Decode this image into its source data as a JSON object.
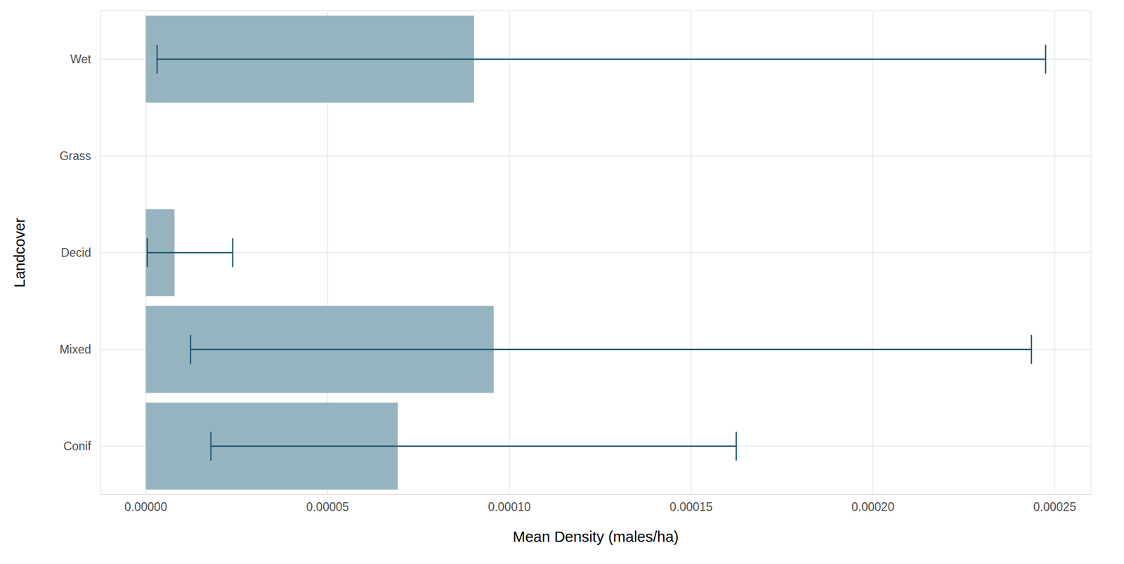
{
  "chart_data": {
    "type": "bar",
    "orientation": "horizontal",
    "x_label": "Mean Density (males/ha)",
    "y_label": "Landcover",
    "categories": [
      "Wet",
      "Grass",
      "Decid",
      "Mixed",
      "Conif"
    ],
    "values": [
      9.03e-05,
      0,
      7.9e-06,
      9.57e-05,
      6.93e-05
    ],
    "error_low": [
      3.1e-06,
      0,
      4e-07,
      1.23e-05,
      1.79e-05
    ],
    "error_high": [
      0.0002475,
      0,
      2.39e-05,
      0.0002436,
      0.0001624
    ],
    "color": "#96b4bf",
    "error_color": "#1a5570",
    "xlim": [
      -1.25e-05,
      0.00026
    ],
    "xticks": [
      {
        "value": 0,
        "label": "0.00000"
      },
      {
        "value": 5e-05,
        "label": "0.00005"
      },
      {
        "value": 0.0001,
        "label": "0.00010"
      },
      {
        "value": 0.00015,
        "label": "0.00015"
      },
      {
        "value": 0.0002,
        "label": "0.00020"
      },
      {
        "value": 0.00025,
        "label": "0.00025"
      }
    ],
    "grid": true
  }
}
